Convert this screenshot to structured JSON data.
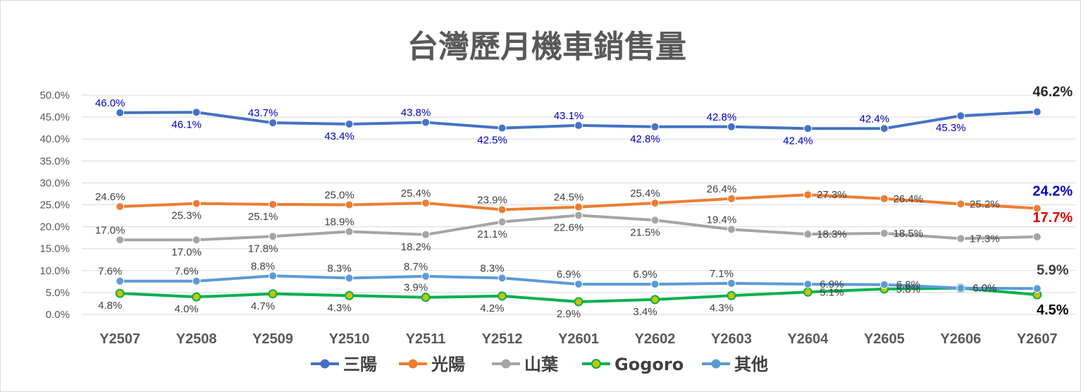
{
  "chart_data": {
    "type": "line",
    "title": "台灣歷月機車銷售量",
    "categories": [
      "Y2507",
      "Y2508",
      "Y2509",
      "Y2510",
      "Y2511",
      "Y2512",
      "Y2601",
      "Y2602",
      "Y2603",
      "Y2604",
      "Y2605",
      "Y2606",
      "Y2607"
    ],
    "ylim": [
      0,
      50
    ],
    "yticks": [
      "0.0%",
      "5.0%",
      "10.0%",
      "15.0%",
      "20.0%",
      "25.0%",
      "30.0%",
      "35.0%",
      "40.0%",
      "45.0%",
      "50.0%"
    ],
    "grid": true,
    "legend": "bottom",
    "series": [
      {
        "name": "三陽",
        "color": "#4472C4",
        "label_color": "#0000C0",
        "values": [
          46.0,
          46.1,
          43.7,
          43.4,
          43.8,
          42.5,
          43.1,
          42.8,
          42.8,
          42.4,
          42.4,
          45.3,
          46.2
        ],
        "labels": [
          "46.0%",
          "46.1%",
          "43.7%",
          "43.4%",
          "43.8%",
          "42.5%",
          "43.1%",
          "42.8%",
          "42.8%",
          "42.4%",
          "42.4%",
          "45.3%",
          "46.2%"
        ],
        "end_label_color": "#262626"
      },
      {
        "name": "光陽",
        "color": "#ED7D31",
        "label_color": "#404040",
        "values": [
          24.6,
          25.3,
          25.1,
          25.0,
          25.4,
          23.9,
          24.5,
          25.4,
          26.4,
          27.3,
          26.4,
          25.2,
          24.2
        ],
        "labels": [
          "24.6%",
          "25.3%",
          "25.1%",
          "25.0%",
          "25.4%",
          "23.9%",
          "24.5%",
          "25.4%",
          "26.4%",
          "27.3%",
          "26.4%",
          "25.2%",
          "24.2%"
        ],
        "end_label_color": "#0000C0"
      },
      {
        "name": "山葉",
        "color": "#A5A5A5",
        "label_color": "#404040",
        "values": [
          17.0,
          17.0,
          17.8,
          18.9,
          18.2,
          21.1,
          22.6,
          21.5,
          19.4,
          18.3,
          18.5,
          17.3,
          17.7
        ],
        "labels": [
          "17.0%",
          "17.0%",
          "17.8%",
          "18.9%",
          "18.2%",
          "21.1%",
          "22.6%",
          "21.5%",
          "19.4%",
          "18.3%",
          "18.5%",
          "17.3%",
          "17.7%"
        ],
        "end_label_color": "#E00000"
      },
      {
        "name": "Gogoro",
        "color": "#00B050",
        "marker_color": "#C9C300",
        "label_color": "#404040",
        "values": [
          4.8,
          4.0,
          4.7,
          4.3,
          3.9,
          4.2,
          2.9,
          3.4,
          4.3,
          5.1,
          5.8,
          6.0,
          4.5
        ],
        "labels": [
          "4.8%",
          "4.0%",
          "4.7%",
          "4.3%",
          "3.9%",
          "4.2%",
          "2.9%",
          "3.4%",
          "4.3%",
          "5.1%",
          "5.8%",
          "6.0%",
          "4.5%"
        ],
        "end_label_color": "#000000"
      },
      {
        "name": "其他",
        "color": "#5B9BD5",
        "label_color": "#404040",
        "values": [
          7.6,
          7.6,
          8.8,
          8.3,
          8.7,
          8.3,
          6.9,
          6.9,
          7.1,
          6.9,
          6.8,
          6.0,
          5.9
        ],
        "labels": [
          "7.6%",
          "7.6%",
          "8.8%",
          "8.3%",
          "8.7%",
          "8.3%",
          "6.9%",
          "6.9%",
          "7.1%",
          "6.9%",
          "6.8%",
          "6.0%",
          "5.9%"
        ],
        "end_label_color": "#404040"
      }
    ]
  }
}
